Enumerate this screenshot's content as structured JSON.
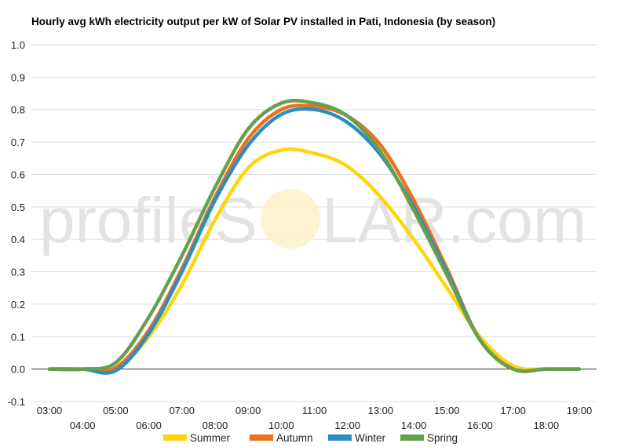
{
  "chart_data": {
    "type": "line",
    "title": "Hourly avg kWh electricity output per kW of Solar PV installed in Pati, Indonesia (by season)",
    "xlabel": "",
    "ylabel": "",
    "x": [
      "03:00",
      "04:00",
      "05:00",
      "06:00",
      "07:00",
      "08:00",
      "09:00",
      "10:00",
      "11:00",
      "12:00",
      "13:00",
      "14:00",
      "15:00",
      "16:00",
      "17:00",
      "18:00",
      "19:00"
    ],
    "ylim": [
      -0.1,
      1.0
    ],
    "yticks": [
      "-0.1",
      "0.0",
      "0.1",
      "0.2",
      "0.3",
      "0.4",
      "0.5",
      "0.6",
      "0.7",
      "0.8",
      "0.9",
      "1.0"
    ],
    "grid": true,
    "legend": "bottom",
    "series": [
      {
        "name": "Summer",
        "color": "#fcd60b",
        "values": [
          0.0,
          0.0,
          0.0,
          0.1,
          0.26,
          0.46,
          0.62,
          0.675,
          0.665,
          0.625,
          0.53,
          0.4,
          0.25,
          0.1,
          0.01,
          0.0,
          0.0
        ]
      },
      {
        "name": "Autumn",
        "color": "#e8731c",
        "values": [
          0.0,
          0.0,
          0.005,
          0.12,
          0.31,
          0.53,
          0.71,
          0.8,
          0.81,
          0.78,
          0.69,
          0.52,
          0.31,
          0.09,
          0.0,
          0.0,
          0.0
        ]
      },
      {
        "name": "Winter",
        "color": "#2a8ec2",
        "values": [
          0.0,
          0.0,
          -0.005,
          0.11,
          0.3,
          0.52,
          0.69,
          0.785,
          0.8,
          0.76,
          0.66,
          0.5,
          0.3,
          0.09,
          0.0,
          0.0,
          0.0
        ]
      },
      {
        "name": "Spring",
        "color": "#6a9e4f",
        "values": [
          0.0,
          0.0,
          0.02,
          0.16,
          0.35,
          0.56,
          0.74,
          0.82,
          0.82,
          0.78,
          0.67,
          0.49,
          0.29,
          0.09,
          0.0,
          0.0,
          0.0
        ]
      }
    ]
  },
  "watermark": {
    "text_left": "profileS",
    "text_right": "LAR.com"
  }
}
